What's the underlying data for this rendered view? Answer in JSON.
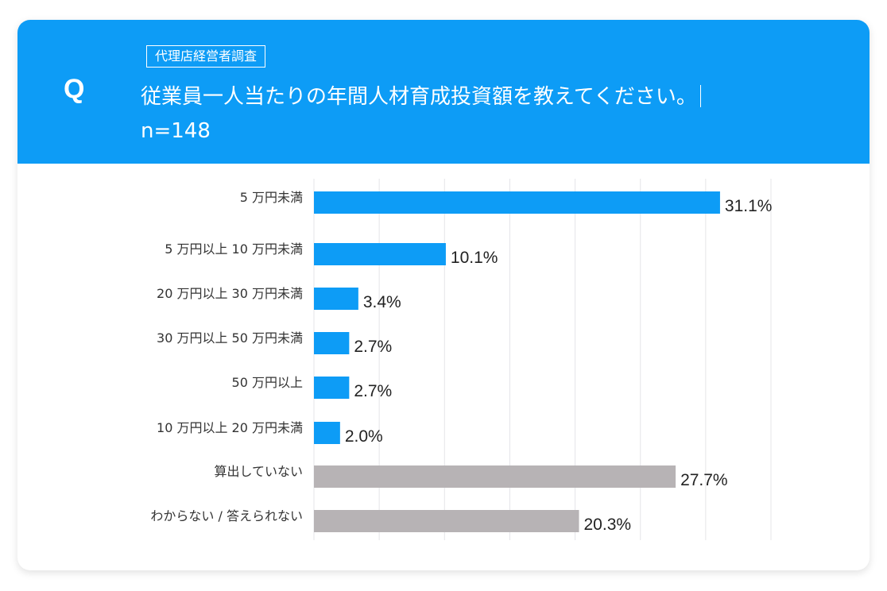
{
  "header": {
    "q_mark": "Q",
    "tag": "代理店経営者調査",
    "question": "従業員一人当たりの年間人材育成投資額を教えてください。",
    "sample": "n=148"
  },
  "colors": {
    "header": "#0d9cf6",
    "primary_bar": "#0d9cf6",
    "secondary_bar": "#b7b3b5",
    "grid": "#e4e4e8"
  },
  "chart_data": {
    "type": "bar",
    "orientation": "horizontal",
    "categories": [
      "5 万円未満",
      "5 万円以上 10 万円未満",
      "20 万円以上 30 万円未満",
      "30 万円以上 50 万円未満",
      "50 万円以上",
      "10 万円以上 20 万円未満",
      "算出していない",
      "わからない / 答えられない"
    ],
    "values": [
      31.1,
      10.1,
      3.4,
      2.7,
      2.7,
      2.0,
      27.7,
      20.3
    ],
    "data_labels": [
      "31.1%",
      "10.1%",
      "3.4%",
      "2.7%",
      "2.7%",
      "2.0%",
      "27.7%",
      "20.3%"
    ],
    "bar_colors": [
      "#0d9cf6",
      "#0d9cf6",
      "#0d9cf6",
      "#0d9cf6",
      "#0d9cf6",
      "#0d9cf6",
      "#b7b3b5",
      "#b7b3b5"
    ],
    "xlim": [
      0,
      35
    ],
    "grid_step": 5,
    "grid": true,
    "unit": "%"
  }
}
